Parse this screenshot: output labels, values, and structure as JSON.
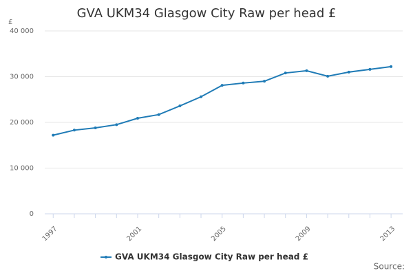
{
  "chart_data": {
    "type": "line",
    "title": "GVA UKM34 Glasgow City Raw per head £",
    "ylabel": "£",
    "source": "Source:",
    "x": [
      1997,
      1998,
      1999,
      2000,
      2001,
      2002,
      2003,
      2004,
      2005,
      2006,
      2007,
      2008,
      2009,
      2010,
      2011,
      2012,
      2013
    ],
    "series": [
      {
        "name": "GVA UKM34 Glasgow City Raw per head £",
        "color": "#1f7bb6",
        "values": [
          17200,
          18300,
          18800,
          19500,
          20900,
          21700,
          23600,
          25600,
          28100,
          28600,
          29000,
          30800,
          31300,
          30100,
          31000,
          31600,
          32200
        ]
      }
    ],
    "xlim": [
      1996.6,
      2013.55
    ],
    "xticks": [
      1997,
      2001,
      2005,
      2009,
      2013
    ],
    "ylim": [
      0,
      40000
    ],
    "yticks": [
      0,
      {
        "value": 10000,
        "label": "10 000"
      },
      {
        "value": 20000,
        "label": "20 000"
      },
      {
        "value": 30000,
        "label": "30 000"
      },
      {
        "value": 40000,
        "label": "40 000"
      }
    ],
    "grid": true,
    "legend": "bottom"
  }
}
